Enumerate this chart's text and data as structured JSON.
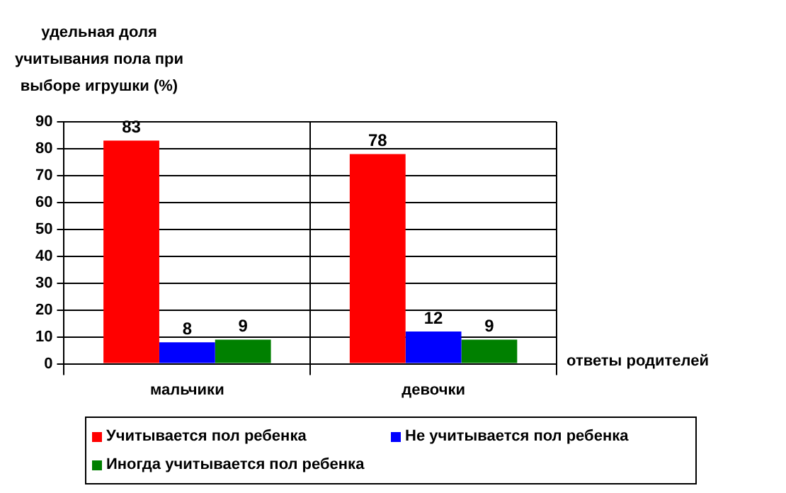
{
  "chart_data": {
    "type": "bar",
    "ylabel": "удельная доля учитывания пола при выборе игрушки (%)",
    "xlabel": "ответы родителей",
    "categories": [
      "мальчики",
      "девочки"
    ],
    "series": [
      {
        "name": "Учитывается пол ребенка",
        "color": "#ff0000",
        "values": [
          83,
          78
        ]
      },
      {
        "name": "Не учитывается пол ребенка",
        "color": "#0000ff",
        "values": [
          8,
          12
        ]
      },
      {
        "name": "Иногда учитывается пол ребенка",
        "color": "#008000",
        "values": [
          9,
          9
        ]
      }
    ],
    "ylim": [
      0,
      90
    ],
    "yticks": [
      0,
      10,
      20,
      30,
      40,
      50,
      60,
      70,
      80,
      90
    ],
    "grid": true,
    "legend": "bottom",
    "data_labels": true
  }
}
